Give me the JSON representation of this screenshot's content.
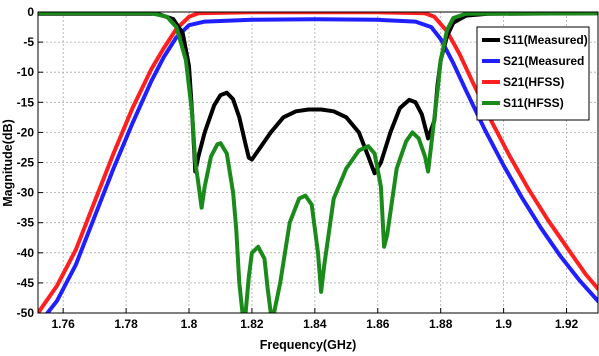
{
  "chart_data": {
    "type": "line",
    "title": "",
    "xlabel": "Frequency(GHz)",
    "ylabel": "Magnitude(dB)",
    "xlim": [
      1.752,
      1.93
    ],
    "ylim": [
      -50,
      0
    ],
    "xticks": [
      1.76,
      1.78,
      1.8,
      1.82,
      1.84,
      1.86,
      1.88,
      1.9,
      1.92
    ],
    "xtick_labels": [
      "1.76",
      "1.78",
      "1.8",
      "1.82",
      "1.84",
      "1.86",
      "1.88",
      "1.9",
      "1.92"
    ],
    "yticks": [
      0,
      -5,
      -10,
      -15,
      -20,
      -25,
      -30,
      -35,
      -40,
      -45,
      -50
    ],
    "ytick_labels": [
      "0",
      "-5",
      "-10",
      "-15",
      "-20",
      "-25",
      "-30",
      "-35",
      "-40",
      "-45",
      "-50"
    ],
    "grid": true,
    "legend_position": "top-right",
    "series": [
      {
        "name": "S11(Measured)",
        "color": "#000000",
        "points": [
          [
            1.752,
            -0.3
          ],
          [
            1.79,
            -0.3
          ],
          [
            1.795,
            -1.2
          ],
          [
            1.798,
            -3.5
          ],
          [
            1.8,
            -9
          ],
          [
            1.801,
            -17
          ],
          [
            1.802,
            -26.5
          ],
          [
            1.803,
            -24
          ],
          [
            1.805,
            -20
          ],
          [
            1.808,
            -15.5
          ],
          [
            1.81,
            -13.8
          ],
          [
            1.812,
            -13.4
          ],
          [
            1.814,
            -14.5
          ],
          [
            1.816,
            -17.5
          ],
          [
            1.818,
            -22
          ],
          [
            1.819,
            -24.2
          ],
          [
            1.82,
            -24.5
          ],
          [
            1.822,
            -23
          ],
          [
            1.826,
            -20
          ],
          [
            1.83,
            -17.5
          ],
          [
            1.834,
            -16.5
          ],
          [
            1.838,
            -16.2
          ],
          [
            1.842,
            -16.2
          ],
          [
            1.846,
            -16.5
          ],
          [
            1.85,
            -17.5
          ],
          [
            1.854,
            -20
          ],
          [
            1.857,
            -24
          ],
          [
            1.859,
            -26.8
          ],
          [
            1.861,
            -25
          ],
          [
            1.864,
            -20
          ],
          [
            1.867,
            -16
          ],
          [
            1.87,
            -14.6
          ],
          [
            1.872,
            -15
          ],
          [
            1.874,
            -17
          ],
          [
            1.876,
            -21
          ],
          [
            1.878,
            -18
          ],
          [
            1.879,
            -12
          ],
          [
            1.88,
            -8
          ],
          [
            1.882,
            -4
          ],
          [
            1.884,
            -1.8
          ],
          [
            1.888,
            -0.6
          ],
          [
            1.895,
            -0.3
          ],
          [
            1.93,
            -0.2
          ]
        ]
      },
      {
        "name": "S21(Measured",
        "color": "#1f1fff",
        "points": [
          [
            1.752,
            -52
          ],
          [
            1.758,
            -48
          ],
          [
            1.764,
            -42
          ],
          [
            1.77,
            -34
          ],
          [
            1.776,
            -26
          ],
          [
            1.782,
            -18.5
          ],
          [
            1.788,
            -11.5
          ],
          [
            1.792,
            -7.5
          ],
          [
            1.796,
            -4.2
          ],
          [
            1.8,
            -2.2
          ],
          [
            1.805,
            -1.6
          ],
          [
            1.82,
            -1.3
          ],
          [
            1.84,
            -1.2
          ],
          [
            1.86,
            -1.3
          ],
          [
            1.872,
            -1.6
          ],
          [
            1.877,
            -2.5
          ],
          [
            1.88,
            -4.5
          ],
          [
            1.884,
            -8.5
          ],
          [
            1.888,
            -13
          ],
          [
            1.894,
            -19.5
          ],
          [
            1.9,
            -25.5
          ],
          [
            1.906,
            -31
          ],
          [
            1.912,
            -36
          ],
          [
            1.918,
            -40.5
          ],
          [
            1.924,
            -44.5
          ],
          [
            1.93,
            -48
          ]
        ]
      },
      {
        "name": "S21(HFSS)",
        "color": "#ff1f1f",
        "points": [
          [
            1.752,
            -50
          ],
          [
            1.758,
            -45.5
          ],
          [
            1.764,
            -39.5
          ],
          [
            1.77,
            -31.5
          ],
          [
            1.776,
            -23.5
          ],
          [
            1.782,
            -16
          ],
          [
            1.788,
            -9.5
          ],
          [
            1.792,
            -6
          ],
          [
            1.796,
            -2.8
          ],
          [
            1.8,
            -0.8
          ],
          [
            1.803,
            -0.2
          ],
          [
            1.82,
            -0.05
          ],
          [
            1.86,
            -0.05
          ],
          [
            1.875,
            -0.2
          ],
          [
            1.878,
            -0.8
          ],
          [
            1.882,
            -3.2
          ],
          [
            1.886,
            -7
          ],
          [
            1.89,
            -11.5
          ],
          [
            1.896,
            -18
          ],
          [
            1.902,
            -24
          ],
          [
            1.908,
            -29.5
          ],
          [
            1.914,
            -34.5
          ],
          [
            1.92,
            -39
          ],
          [
            1.926,
            -43.5
          ],
          [
            1.93,
            -46
          ]
        ]
      },
      {
        "name": "S11(HFSS)",
        "color": "#1a8a1a",
        "points": [
          [
            1.752,
            -0.2
          ],
          [
            1.788,
            -0.2
          ],
          [
            1.793,
            -0.8
          ],
          [
            1.796,
            -2.5
          ],
          [
            1.799,
            -8
          ],
          [
            1.801,
            -17
          ],
          [
            1.802,
            -25
          ],
          [
            1.803,
            -28.5
          ],
          [
            1.804,
            -32.5
          ],
          [
            1.805,
            -29
          ],
          [
            1.807,
            -24
          ],
          [
            1.809,
            -22
          ],
          [
            1.81,
            -21.8
          ],
          [
            1.812,
            -23.5
          ],
          [
            1.814,
            -30
          ],
          [
            1.815,
            -36
          ],
          [
            1.816,
            -45
          ],
          [
            1.817,
            -50
          ],
          [
            1.818,
            -50
          ],
          [
            1.819,
            -44
          ],
          [
            1.82,
            -40
          ],
          [
            1.822,
            -39
          ],
          [
            1.824,
            -41
          ],
          [
            1.825,
            -46
          ],
          [
            1.826,
            -50
          ],
          [
            1.827,
            -50
          ],
          [
            1.829,
            -45
          ],
          [
            1.832,
            -35
          ],
          [
            1.835,
            -31
          ],
          [
            1.837,
            -30.5
          ],
          [
            1.839,
            -32
          ],
          [
            1.841,
            -40
          ],
          [
            1.842,
            -46.5
          ],
          [
            1.843,
            -42
          ],
          [
            1.846,
            -31
          ],
          [
            1.85,
            -26
          ],
          [
            1.854,
            -23
          ],
          [
            1.857,
            -22.3
          ],
          [
            1.859,
            -23.5
          ],
          [
            1.861,
            -29
          ],
          [
            1.862,
            -39
          ],
          [
            1.863,
            -37
          ],
          [
            1.866,
            -26
          ],
          [
            1.869,
            -21.5
          ],
          [
            1.871,
            -20
          ],
          [
            1.873,
            -21
          ],
          [
            1.875,
            -24
          ],
          [
            1.876,
            -26.5
          ],
          [
            1.877,
            -22
          ],
          [
            1.879,
            -13
          ],
          [
            1.88,
            -8
          ],
          [
            1.882,
            -3
          ],
          [
            1.884,
            -1
          ],
          [
            1.888,
            -0.3
          ],
          [
            1.93,
            -0.2
          ]
        ]
      }
    ]
  }
}
